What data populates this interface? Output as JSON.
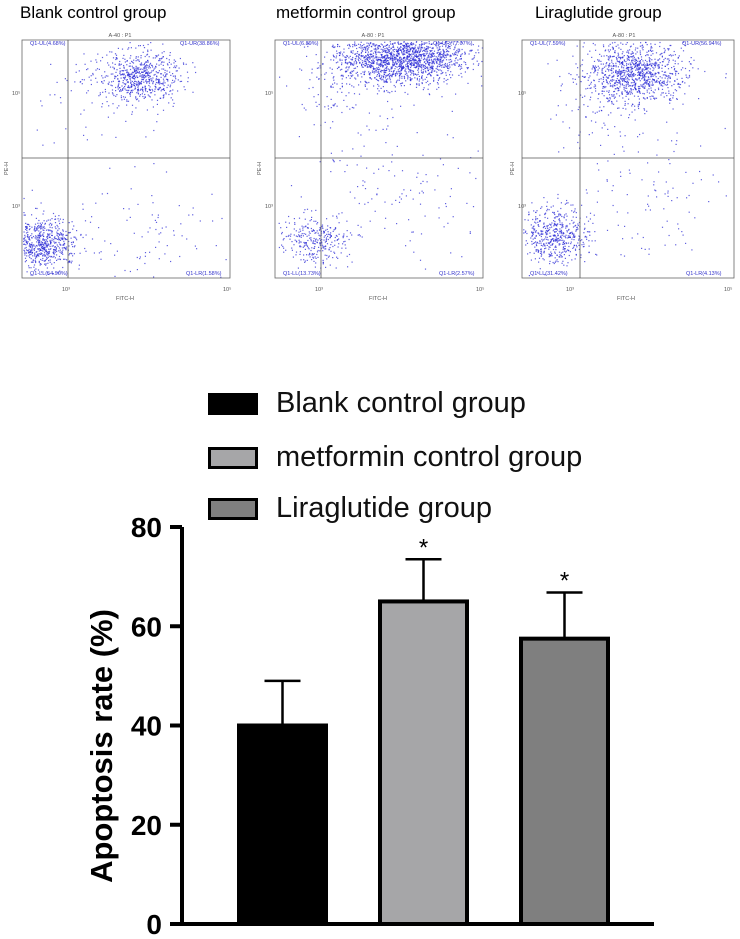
{
  "flow_panels": [
    {
      "title": "Blank control group",
      "gate": "A-40 : P1",
      "ul": "Q1-UL(4.68%)",
      "ur": "Q1-UR(38.86%)",
      "ll": "Q1-LL(54.90%)",
      "lr": "Q1-LR(1.58%)",
      "xaxis": "FITC-H",
      "yaxis": "PE-H",
      "tick_lo": "10³",
      "tick_hi": "10⁵"
    },
    {
      "title": "metformin control group",
      "gate": "A-80 : P1",
      "ul": "Q1-UL(6.89%)",
      "ur": "Q1-UR(77.07%)",
      "ll": "Q1-LL(13.73%)",
      "lr": "Q1-LR(2.57%)",
      "xaxis": "FITC-H",
      "yaxis": "PE-H",
      "tick_lo": "10³",
      "tick_hi": "10⁵"
    },
    {
      "title": "Liraglutide group",
      "gate": "A-80 : P1",
      "ul": "Q1-UL(7.59%)",
      "ur": "Q1-UR(56.94%)",
      "ll": "Q1-LL(31.42%)",
      "lr": "Q1-LR(4.13%)",
      "xaxis": "FITC-H",
      "yaxis": "PE-H",
      "tick_lo": "10³",
      "tick_hi": "10⁵"
    }
  ],
  "legend": [
    {
      "label": "Blank control group",
      "color": "#000000"
    },
    {
      "label": "metformin control group",
      "color": "#a6a6a8"
    },
    {
      "label": "Liraglutide group",
      "color": "#7f7f7f"
    }
  ],
  "dot_color": "#2b2bd6",
  "chart_data": {
    "type": "bar",
    "categories": [
      "Blank control group",
      "metformin control group",
      "Liraglutide group"
    ],
    "values": [
      40,
      65,
      57.5
    ],
    "errors": [
      9,
      8.5,
      9.3
    ],
    "significance": [
      "",
      "*",
      "*"
    ],
    "colors": [
      "#000000",
      "#a6a6a8",
      "#7f7f7f"
    ],
    "ylabel": "Apoptosis rate (%)",
    "ylim": [
      0,
      80
    ],
    "yticks": [
      0,
      20,
      40,
      60,
      80
    ],
    "grid": false,
    "legend_position": "top"
  }
}
